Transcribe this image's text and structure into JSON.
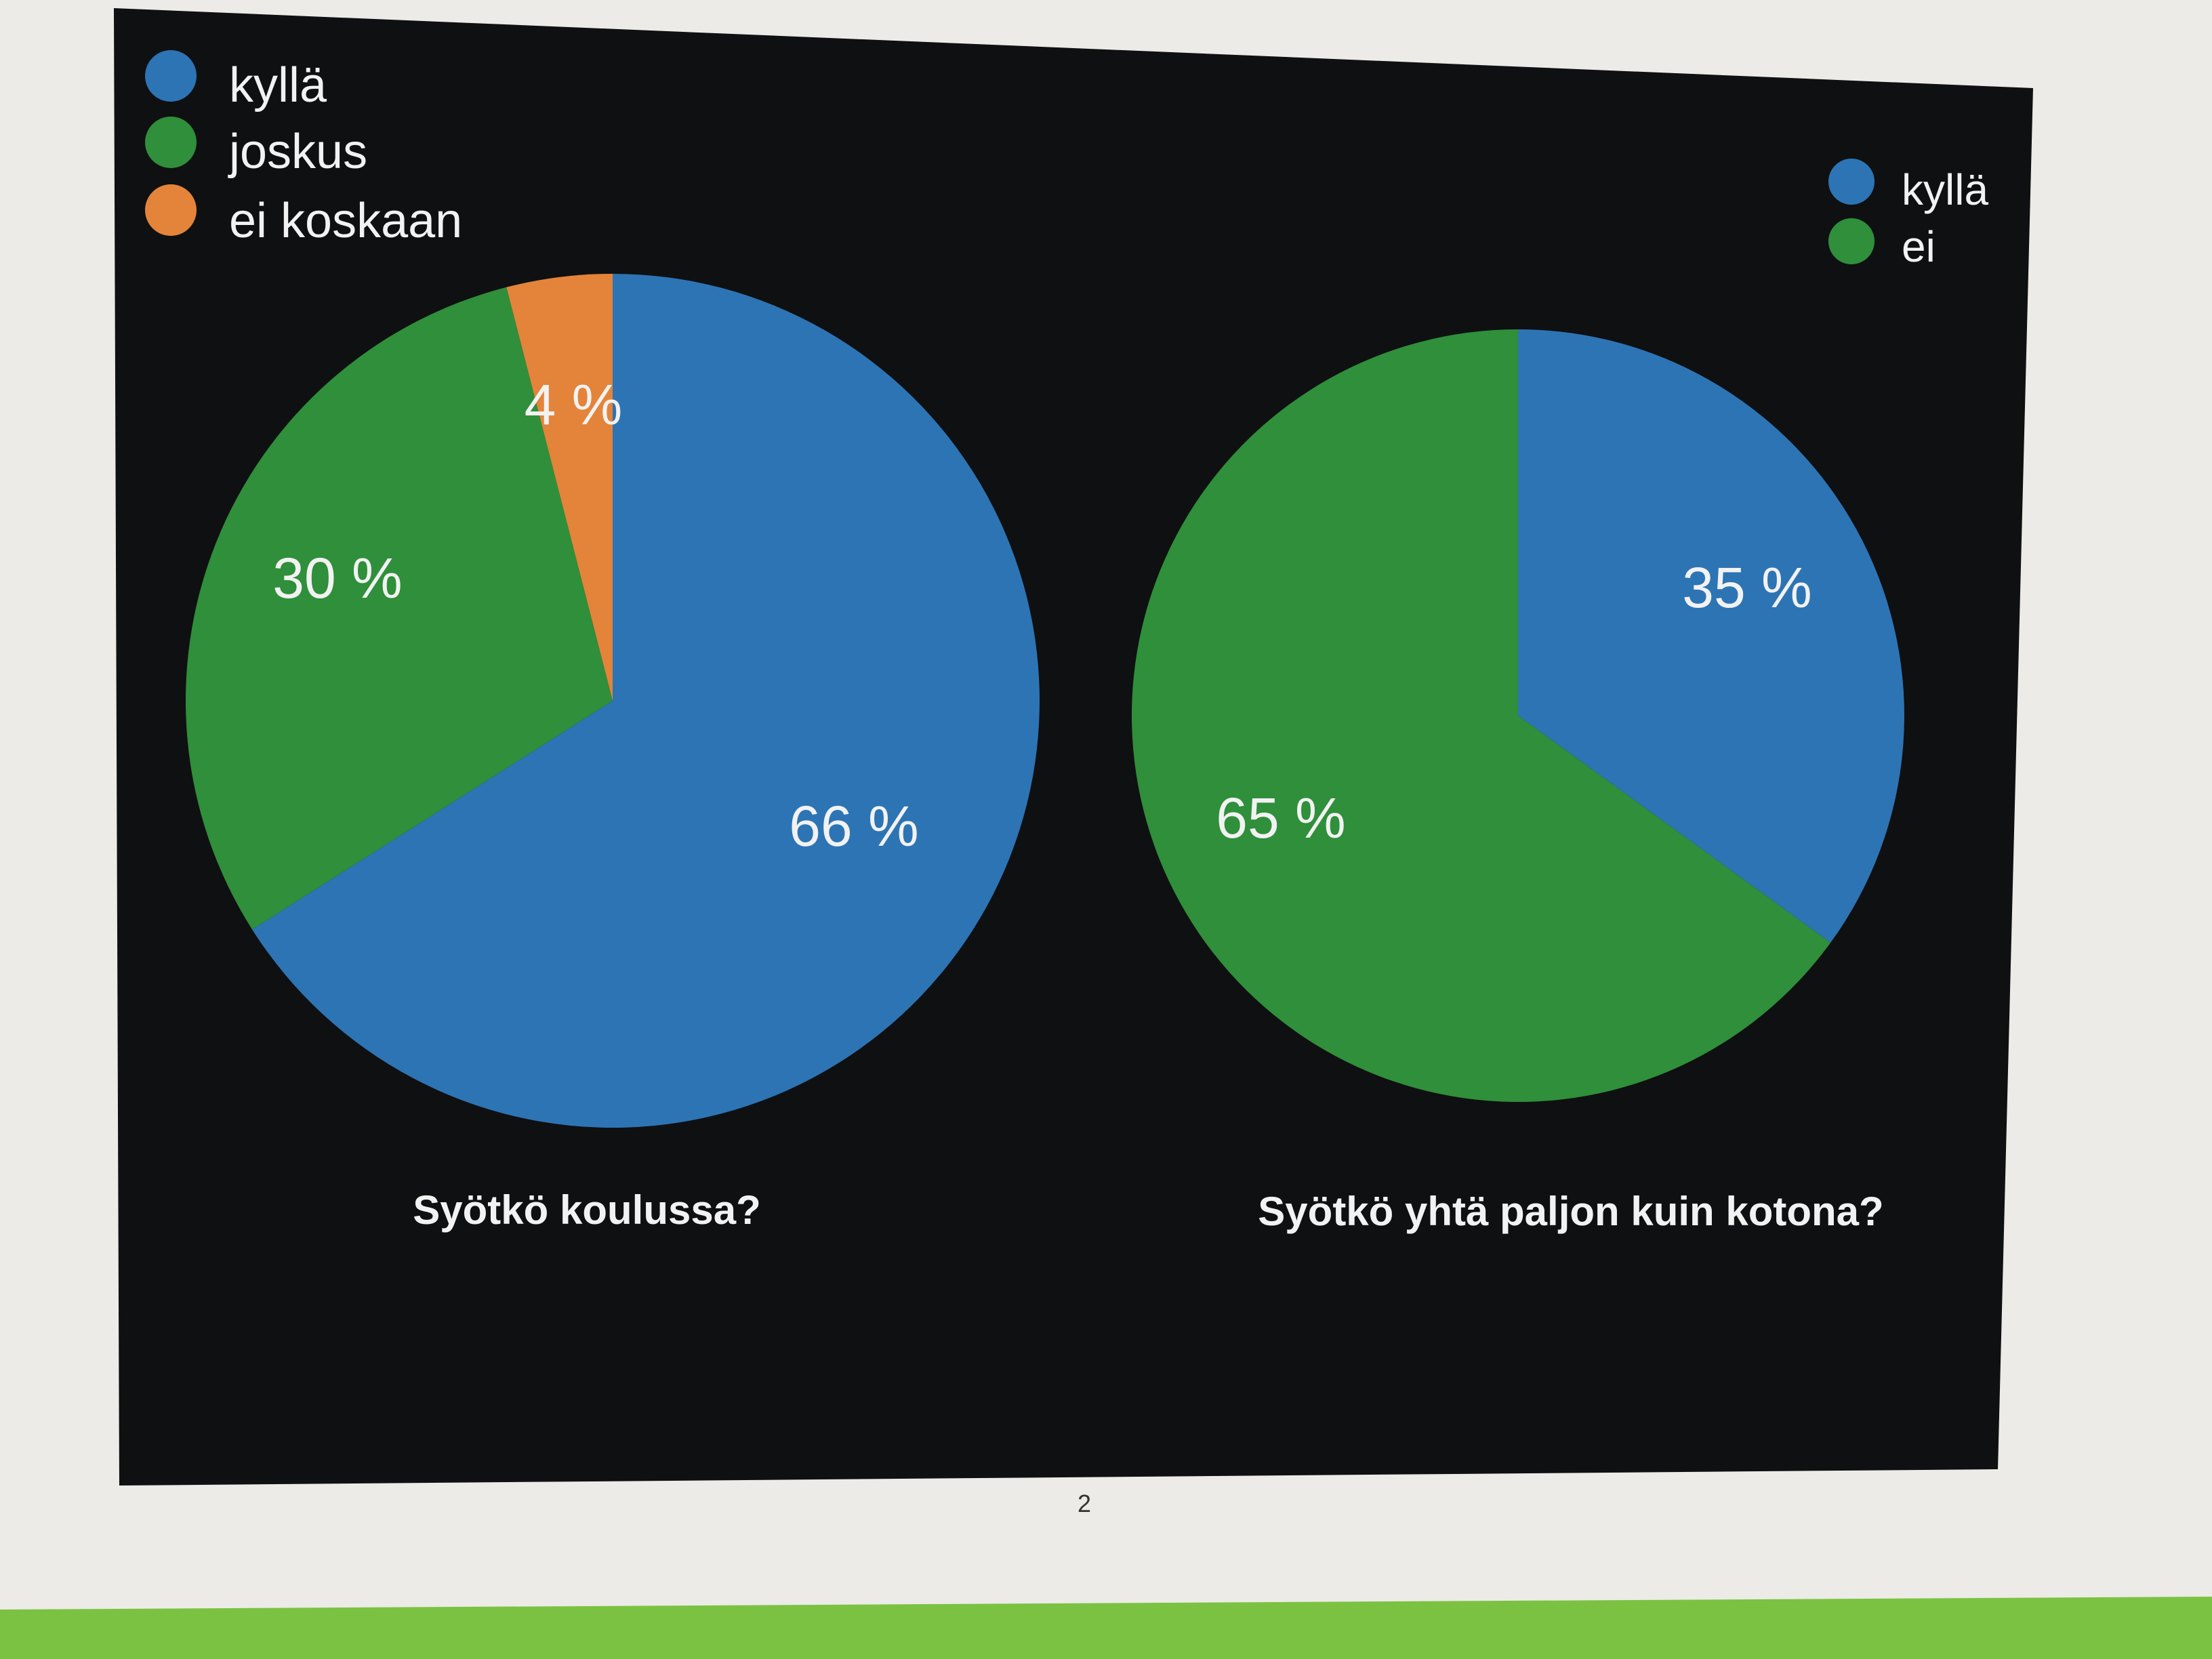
{
  "page": {
    "number": "2"
  },
  "colors": {
    "wall": "#7cc242",
    "paper": "#ecebe7",
    "slide": "#0f1012",
    "blue": "#2d74b4",
    "green": "#2f8f3a",
    "orange": "#e3843a",
    "text": "#f2f2f2"
  },
  "chart_data": [
    {
      "type": "pie",
      "title": "Syötkö koulussa?",
      "legend_position": "top-left",
      "slices": [
        {
          "label": "kyllä",
          "value": 66,
          "display": "66 %",
          "color": "#2d74b4"
        },
        {
          "label": "joskus",
          "value": 30,
          "display": "30 %",
          "color": "#2f8f3a"
        },
        {
          "label": "ei koskaan",
          "value": 4,
          "display": "4 %",
          "color": "#e3843a"
        }
      ]
    },
    {
      "type": "pie",
      "title": "Syötkö yhtä paljon kuin kotona?",
      "legend_position": "top-right",
      "slices": [
        {
          "label": "kyllä",
          "value": 35,
          "display": "35 %",
          "color": "#2d74b4"
        },
        {
          "label": "ei",
          "value": 65,
          "display": "65 %",
          "color": "#2f8f3a"
        }
      ]
    }
  ]
}
